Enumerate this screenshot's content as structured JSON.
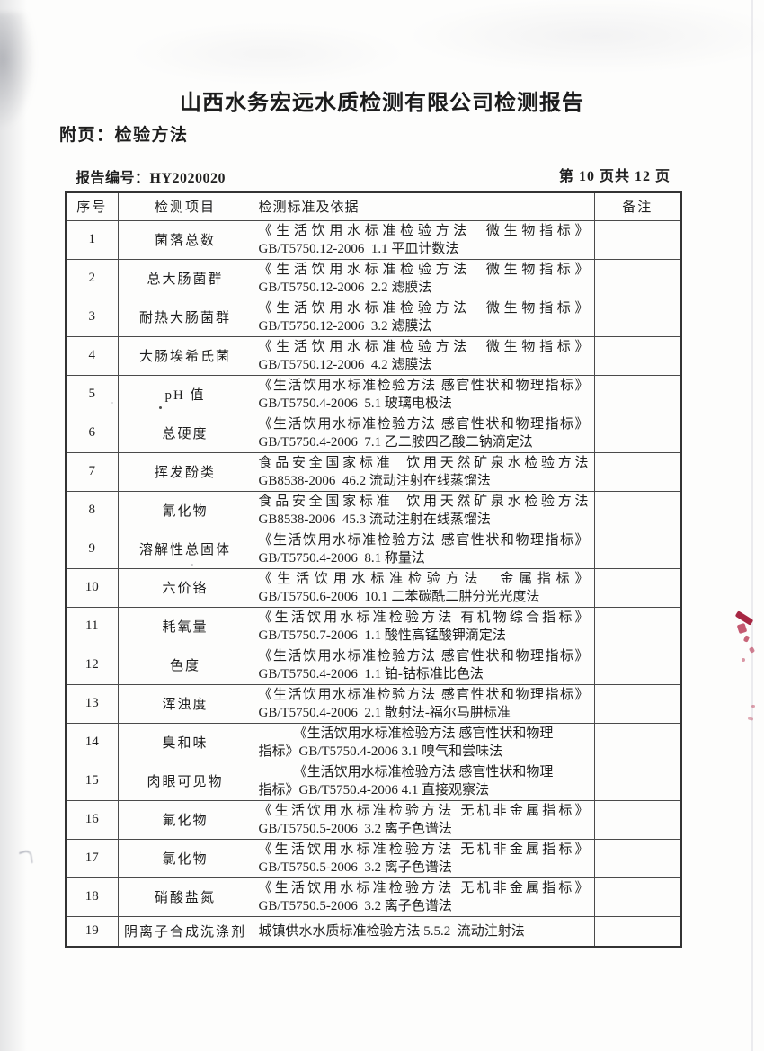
{
  "page": {
    "title": "山西水务宏远水质检测有限公司检测报告",
    "subtitle": "附页：检验方法",
    "report_no": "报告编号：HY2020020",
    "page_indicator": "第 10 页共 12 页"
  },
  "colors": {
    "ink": "#222222",
    "table_border": "#444444",
    "red_ink_mark": "#b5314e",
    "paper": "#fdfdfc"
  },
  "table": {
    "headers": [
      "序号",
      "检测项目",
      "检测标准及依据",
      "备注"
    ],
    "rows": [
      {
        "no": "1",
        "item": "菌落总数",
        "std": [
          "《生活饮用水标准检验方法  微生物指标》",
          "GB/T5750.12-2006  1.1 平皿计数法"
        ],
        "remark": ""
      },
      {
        "no": "2",
        "item": "总大肠菌群",
        "std": [
          "《生活饮用水标准检验方法  微生物指标》",
          "GB/T5750.12-2006  2.2 滤膜法"
        ],
        "remark": ""
      },
      {
        "no": "3",
        "item": "耐热大肠菌群",
        "std": [
          "《生活饮用水标准检验方法  微生物指标》",
          "GB/T5750.12-2006  3.2 滤膜法"
        ],
        "remark": ""
      },
      {
        "no": "4",
        "item": "大肠埃希氏菌",
        "std": [
          "《生活饮用水标准检验方法  微生物指标》",
          "GB/T5750.12-2006  4.2 滤膜法"
        ],
        "remark": ""
      },
      {
        "no": "5",
        "item": "pH 值",
        "std": [
          "《生活饮用水标准检验方法 感官性状和物理指标》",
          "GB/T5750.4-2006  5.1 玻璃电极法"
        ],
        "remark": ""
      },
      {
        "no": "6",
        "item": "总硬度",
        "std": [
          "《生活饮用水标准检验方法 感官性状和物理指标》",
          "GB/T5750.4-2006  7.1 乙二胺四乙酸二钠滴定法"
        ],
        "remark": ""
      },
      {
        "no": "7",
        "item": "挥发酚类",
        "std": [
          "食品安全国家标准  饮用天然矿泉水检验方法",
          "GB8538-2006  46.2 流动注射在线蒸馏法"
        ],
        "remark": ""
      },
      {
        "no": "8",
        "item": "氰化物",
        "std": [
          "食品安全国家标准  饮用天然矿泉水检验方法",
          "GB8538-2006  45.3 流动注射在线蒸馏法"
        ],
        "remark": ""
      },
      {
        "no": "9",
        "item": "溶解性总固体",
        "std": [
          "《生活饮用水标准检验方法 感官性状和物理指标》",
          "GB/T5750.4-2006  8.1 称量法"
        ],
        "remark": ""
      },
      {
        "no": "10",
        "item": "六价铬",
        "std": [
          "《生活饮用水标准检验方法  金属指标》",
          "GB/T5750.6-2006  10.1 二苯碳酰二肼分光光度法"
        ],
        "remark": ""
      },
      {
        "no": "11",
        "item": "耗氧量",
        "std": [
          "《生活饮用水标准检验方法 有机物综合指标》",
          "GB/T5750.7-2006  1.1 酸性高锰酸钾滴定法"
        ],
        "remark": ""
      },
      {
        "no": "12",
        "item": "色度",
        "std": [
          "《生活饮用水标准检验方法 感官性状和物理指标》",
          "GB/T5750.4-2006  1.1 铂-钴标准比色法"
        ],
        "remark": ""
      },
      {
        "no": "13",
        "item": "浑浊度",
        "std": [
          "《生活饮用水标准检验方法 感官性状和物理指标》",
          "GB/T5750.4-2006  2.1 散射法-福尔马肼标准"
        ],
        "remark": ""
      },
      {
        "no": "14",
        "item": "臭和味",
        "std": [
          "《生活饮用水标准检验方法 感官性状和物理",
          "指标》GB/T5750.4-2006 3.1 嗅气和尝味法"
        ],
        "remark": ""
      },
      {
        "no": "15",
        "item": "肉眼可见物",
        "std": [
          "《生活饮用水标准检验方法 感官性状和物理",
          "指标》GB/T5750.4-2006 4.1 直接观察法"
        ],
        "remark": ""
      },
      {
        "no": "16",
        "item": "氟化物",
        "std": [
          "《生活饮用水标准检验方法 无机非金属指标》",
          "GB/T5750.5-2006  3.2 离子色谱法"
        ],
        "remark": ""
      },
      {
        "no": "17",
        "item": "氯化物",
        "std": [
          "《生活饮用水标准检验方法 无机非金属指标》",
          "GB/T5750.5-2006  3.2 离子色谱法"
        ],
        "remark": ""
      },
      {
        "no": "18",
        "item": "硝酸盐氮",
        "std": [
          "《生活饮用水标准检验方法 无机非金属指标》",
          "GB/T5750.5-2006  3.2 离子色谱法"
        ],
        "remark": ""
      },
      {
        "no": "19",
        "item": "阴离子合成洗涤剂",
        "std": [
          "城镇供水水质标准检验方法 5.5.2  流动注射法"
        ],
        "remark": ""
      }
    ]
  }
}
